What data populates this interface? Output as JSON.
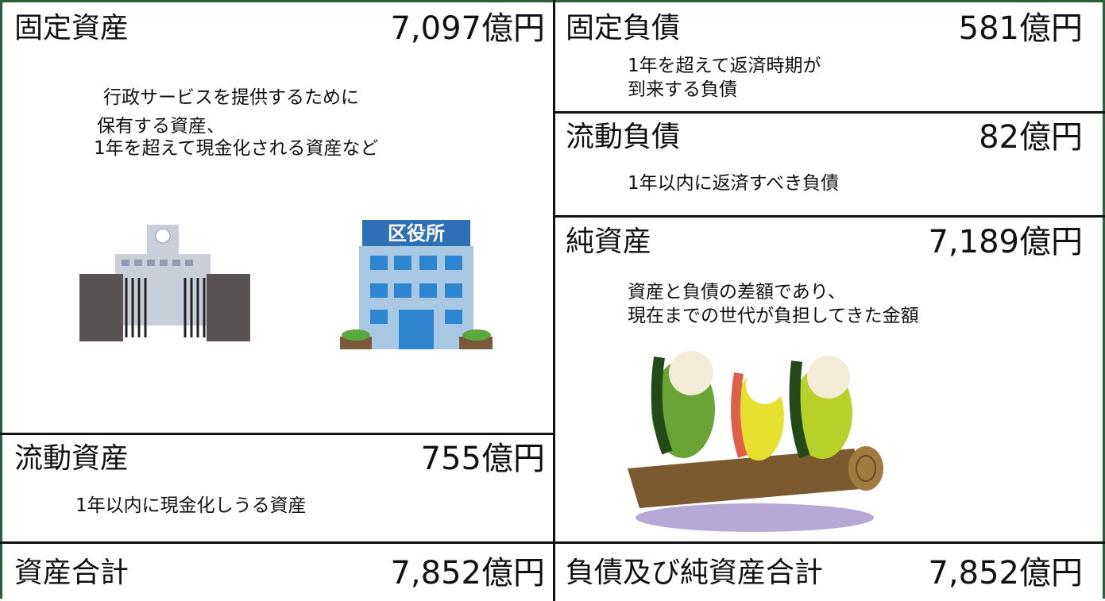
{
  "left": {
    "fixed_assets": {
      "title": "固定資産",
      "amount": "7,097億円",
      "description": [
        "行政サービスを提供するために",
        "保有する資産、",
        "1年を超えて現金化される資産など"
      ]
    },
    "current_assets": {
      "title": "流動資産",
      "amount": "755億円",
      "description": [
        "1年以内に現金化しうる資産"
      ]
    },
    "total": {
      "title": "資産合計",
      "amount": "7,852億円"
    }
  },
  "right": {
    "fixed_liabilities": {
      "title": "固定負債",
      "amount": "581億円",
      "description": [
        "1年を超えて返済時期が",
        "到来する負債"
      ]
    },
    "current_liabilities": {
      "title": "流動負債",
      "amount": "82億円",
      "description": [
        "1年以内に返済すべき負債"
      ]
    },
    "net_assets": {
      "title": "純資産",
      "amount": "7,189億円",
      "description": [
        "資産と負債の差額であり、",
        "現在までの世代が負担してきた金額"
      ]
    },
    "total": {
      "title": "負債及び純資産合計",
      "amount": "7,852億円"
    }
  },
  "illustration": {
    "ward_office_sign": "区役所"
  }
}
